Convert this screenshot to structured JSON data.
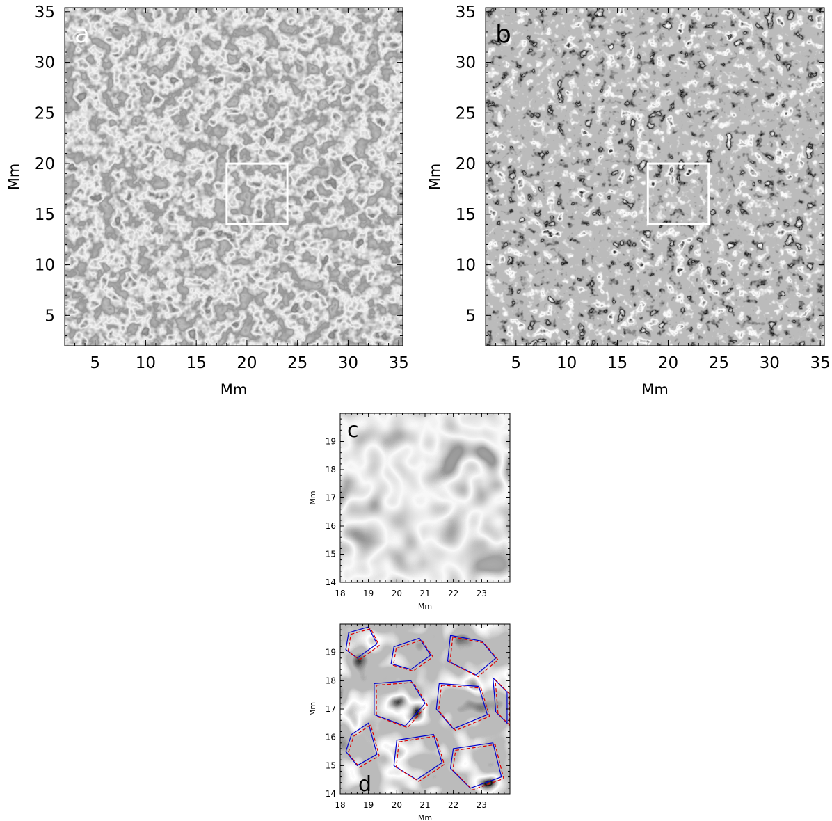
{
  "panels": [
    {
      "id": "a",
      "letter": "a",
      "letter_color": "#ffffff",
      "xlabel": "Mm",
      "ylabel": "Mm",
      "xlim": [
        2,
        35.4
      ],
      "ylim": [
        2,
        35.4
      ],
      "xticks": [
        5,
        10,
        15,
        20,
        25,
        30,
        35
      ],
      "yticks": [
        5,
        10,
        15,
        20,
        25,
        30,
        35
      ],
      "box": {
        "x": [
          18,
          24
        ],
        "y": [
          14,
          20
        ]
      },
      "style": "cells-gray"
    },
    {
      "id": "b",
      "letter": "b",
      "letter_color": "#000000",
      "xlabel": "Mm",
      "ylabel": "Mm",
      "xlim": [
        2,
        35.4
      ],
      "ylim": [
        2,
        35.4
      ],
      "xticks": [
        5,
        10,
        15,
        20,
        25,
        30,
        35
      ],
      "yticks": [
        5,
        10,
        15,
        20,
        25,
        30,
        35
      ],
      "box": {
        "x": [
          18,
          24
        ],
        "y": [
          14,
          20
        ]
      },
      "style": "edges-mid"
    },
    {
      "id": "c",
      "letter": "c",
      "letter_color": "#000000",
      "xlabel": "Mm",
      "ylabel": "Mm",
      "xlim": [
        18,
        24
      ],
      "ylim": [
        14,
        20
      ],
      "xticks": [
        18,
        19,
        20,
        21,
        22,
        23
      ],
      "yticks": [
        14,
        15,
        16,
        17,
        18,
        19
      ],
      "style": "zoom-gray"
    },
    {
      "id": "d",
      "letter": "d",
      "letter_color": "#000000",
      "xlabel": "Mm",
      "ylabel": "Mm",
      "xlim": [
        18,
        24
      ],
      "ylim": [
        14,
        20
      ],
      "xticks": [
        18,
        19,
        20,
        21,
        22,
        23
      ],
      "yticks": [
        14,
        15,
        16,
        17,
        18,
        19
      ],
      "style": "zoom-contours",
      "contour_colors": {
        "solid": "#0000cc",
        "dashed": "#dd0000"
      }
    }
  ]
}
